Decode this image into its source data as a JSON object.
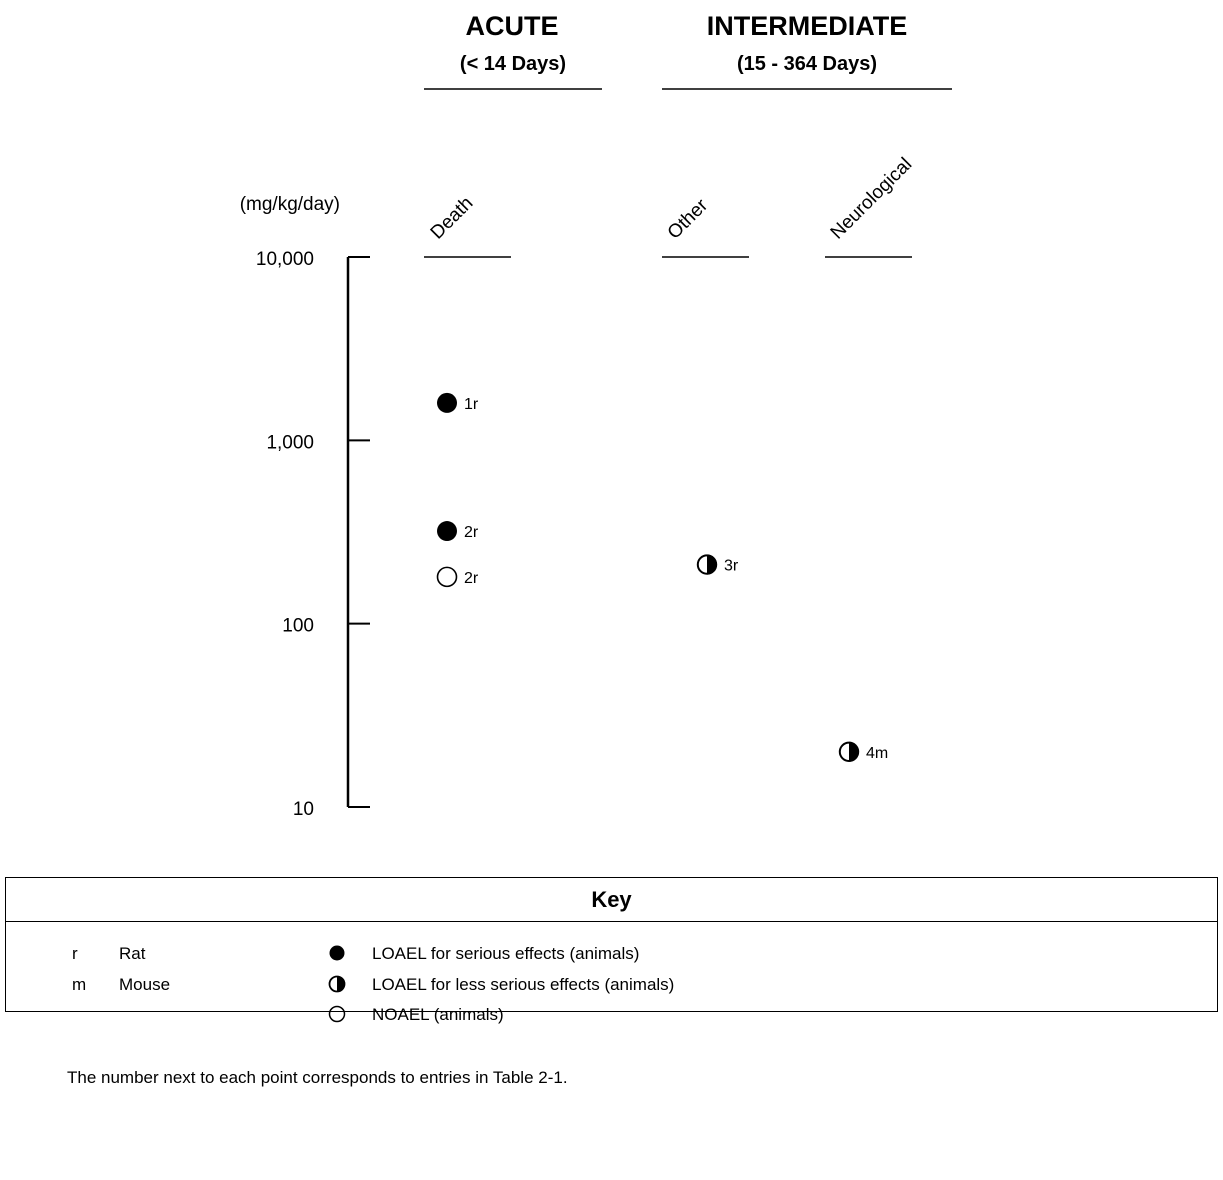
{
  "chart_data": {
    "type": "scatter",
    "y_scale": "log",
    "ylim": [
      10,
      10000
    ],
    "ylabel": "(mg/kg/day)",
    "yticks": [
      {
        "value": 10000,
        "label": "10,000"
      },
      {
        "value": 1000,
        "label": "1,000"
      },
      {
        "value": 100,
        "label": "100"
      },
      {
        "value": 10,
        "label": "10"
      }
    ],
    "periods": [
      {
        "name": "ACUTE",
        "range": "(< 14 Days)",
        "categories": [
          "Death"
        ]
      },
      {
        "name": "INTERMEDIATE",
        "range": "(15 - 364 Days)",
        "categories": [
          "Other",
          "Neurological"
        ]
      }
    ],
    "points": [
      {
        "category": "Death",
        "value": 1600,
        "label": "1r",
        "marker": "filled"
      },
      {
        "category": "Death",
        "value": 320,
        "label": "2r",
        "marker": "filled"
      },
      {
        "category": "Death",
        "value": 180,
        "label": "2r",
        "marker": "open"
      },
      {
        "category": "Other",
        "value": 210,
        "label": "3r",
        "marker": "half"
      },
      {
        "category": "Neurological",
        "value": 20,
        "label": "4m",
        "marker": "half"
      }
    ]
  },
  "key": {
    "title": "Key",
    "species": [
      {
        "code": "r",
        "name": "Rat"
      },
      {
        "code": "m",
        "name": "Mouse"
      }
    ],
    "legend": [
      {
        "marker": "filled",
        "text": "LOAEL for serious effects (animals)"
      },
      {
        "marker": "half",
        "text": "LOAEL for less serious effects (animals)"
      },
      {
        "marker": "open",
        "text": "NOAEL (animals)"
      }
    ],
    "note": "The number next to each point corresponds to entries in Table 2-1."
  }
}
